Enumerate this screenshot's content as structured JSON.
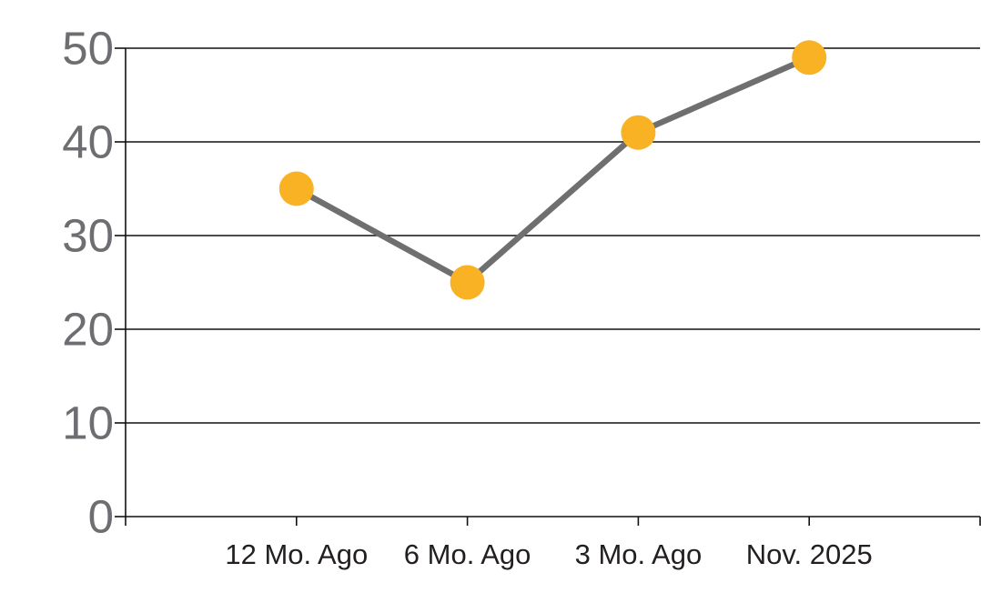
{
  "chart_data": {
    "type": "line",
    "categories": [
      "12 Mo. Ago",
      "6 Mo. Ago",
      "3 Mo. Ago",
      "Nov. 2025"
    ],
    "values": [
      35,
      25,
      41,
      49
    ],
    "series": [
      {
        "name": "",
        "values": [
          35,
          25,
          41,
          49
        ]
      }
    ],
    "title": "",
    "xlabel": "",
    "ylabel": "",
    "ylim": [
      0,
      50
    ],
    "yticks": [
      0,
      10,
      20,
      30,
      40,
      50
    ],
    "grid": true,
    "legend": "none",
    "marker_style": "filled-circle",
    "colors": {
      "marker": "#F8B223",
      "line": "#6F6F6F",
      "grid": "#111111",
      "axis": "#111111",
      "y_tick_label": "#6D6E71",
      "x_tick_label": "#231F20",
      "background": "#FFFFFF"
    }
  }
}
